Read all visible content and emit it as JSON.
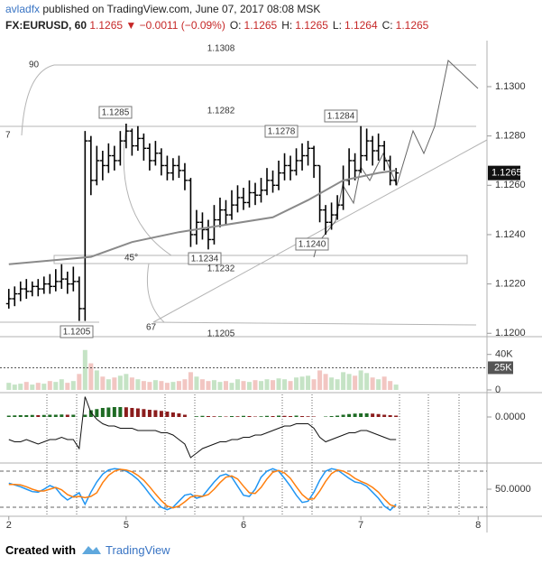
{
  "header": {
    "author": "avladfx",
    "published": "published on TradingView.com, June 07, 2017 08:08 MSK",
    "symbol": "FX:EURUSD, 60",
    "last": "1.1265",
    "arrow": "▼",
    "change": "−0.0011 (−0.09%)",
    "quote": [
      {
        "label": "O:",
        "value": "1.1265"
      },
      {
        "label": "H:",
        "value": "1.1265"
      },
      {
        "label": "L:",
        "value": "1.1264"
      },
      {
        "label": "C:",
        "value": "1.1265"
      }
    ]
  },
  "footer": {
    "created_with": "Created with",
    "brand": "TradingView"
  },
  "chart_data": [
    {
      "type": "ohlc",
      "color": "#000000",
      "xlim": [
        -1.5,
        81.5
      ],
      "ylim": [
        1.1199,
        1.1315
      ],
      "yticks": [
        {
          "value": 1.12,
          "label": "1.1200"
        },
        {
          "value": 1.122,
          "label": "1.1220"
        },
        {
          "value": 1.124,
          "label": "1.1240"
        },
        {
          "value": 1.126,
          "label": "1.1260"
        },
        {
          "value": 1.128,
          "label": "1.1280"
        },
        {
          "value": 1.13,
          "label": "1.1300"
        }
      ],
      "open": [
        1.1212,
        1.1214,
        1.1216,
        1.1218,
        1.1217,
        1.1219,
        1.1218,
        1.122,
        1.1219,
        1.1221,
        1.1222,
        1.122,
        1.1221,
        1.121,
        1.1278,
        1.1262,
        1.127,
        1.1268,
        1.1272,
        1.127,
        1.1278,
        1.1282,
        1.1276,
        1.1279,
        1.1275,
        1.127,
        1.1273,
        1.1268,
        1.1265,
        1.1268,
        1.1266,
        1.1262,
        1.124,
        1.1245,
        1.1242,
        1.1238,
        1.1246,
        1.125,
        1.1248,
        1.1252,
        1.1255,
        1.1253,
        1.1257,
        1.1256,
        1.1258,
        1.1262,
        1.126,
        1.1265,
        1.1268,
        1.1266,
        1.127,
        1.1272,
        1.1275,
        1.1268,
        1.125,
        1.1245,
        1.1248,
        1.1252,
        1.1262,
        1.127,
        1.1266,
        1.1272,
        1.1278,
        1.1274,
        1.1276,
        1.127,
        1.1262
      ],
      "high": [
        1.1218,
        1.1219,
        1.1221,
        1.1222,
        1.1221,
        1.1222,
        1.1223,
        1.1224,
        1.1226,
        1.1228,
        1.1225,
        1.1227,
        1.1223,
        1.1282,
        1.128,
        1.1276,
        1.1274,
        1.1277,
        1.1276,
        1.1282,
        1.1285,
        1.1283,
        1.1284,
        1.1281,
        1.1277,
        1.1278,
        1.1275,
        1.1272,
        1.1271,
        1.1272,
        1.1269,
        1.1263,
        1.125,
        1.1249,
        1.1246,
        1.1252,
        1.1255,
        1.1254,
        1.1258,
        1.126,
        1.1259,
        1.1262,
        1.1261,
        1.1263,
        1.1267,
        1.1266,
        1.127,
        1.1273,
        1.1272,
        1.1275,
        1.1277,
        1.1278,
        1.1276,
        1.1268,
        1.1252,
        1.1253,
        1.1256,
        1.1268,
        1.1275,
        1.1273,
        1.1284,
        1.1283,
        1.128,
        1.1281,
        1.1278,
        1.1272,
        1.1267
      ],
      "low": [
        1.121,
        1.1211,
        1.1213,
        1.1214,
        1.1215,
        1.1215,
        1.1216,
        1.1216,
        1.1217,
        1.1218,
        1.1216,
        1.1217,
        1.1205,
        1.1205,
        1.1256,
        1.126,
        1.1262,
        1.1265,
        1.1266,
        1.1268,
        1.1275,
        1.1272,
        1.1274,
        1.127,
        1.1266,
        1.1268,
        1.1264,
        1.1262,
        1.1262,
        1.1263,
        1.1258,
        1.1235,
        1.1236,
        1.1238,
        1.1234,
        1.1236,
        1.1243,
        1.1244,
        1.1246,
        1.1249,
        1.125,
        1.1251,
        1.1252,
        1.1253,
        1.1256,
        1.1257,
        1.1258,
        1.1262,
        1.1262,
        1.1264,
        1.1266,
        1.1268,
        1.1263,
        1.1245,
        1.124,
        1.1242,
        1.1246,
        1.125,
        1.126,
        1.1262,
        1.1265,
        1.127,
        1.1268,
        1.127,
        1.1266,
        1.126,
        1.126
      ],
      "close": [
        1.1214,
        1.1216,
        1.1218,
        1.1217,
        1.1219,
        1.1218,
        1.122,
        1.1219,
        1.1221,
        1.1222,
        1.122,
        1.1221,
        1.121,
        1.1278,
        1.1262,
        1.127,
        1.1268,
        1.1272,
        1.127,
        1.1278,
        1.1282,
        1.1276,
        1.1279,
        1.1275,
        1.127,
        1.1273,
        1.1268,
        1.1265,
        1.1268,
        1.1266,
        1.1262,
        1.124,
        1.1245,
        1.1242,
        1.1238,
        1.1246,
        1.125,
        1.1248,
        1.1252,
        1.1255,
        1.1253,
        1.1257,
        1.1256,
        1.1258,
        1.1262,
        1.126,
        1.1265,
        1.1268,
        1.1266,
        1.127,
        1.1272,
        1.1275,
        1.1268,
        1.125,
        1.1245,
        1.1248,
        1.1252,
        1.1262,
        1.127,
        1.1266,
        1.1272,
        1.1278,
        1.1274,
        1.1276,
        1.127,
        1.1262,
        1.1265
      ],
      "series": [
        {
          "color": "#8a8a8a",
          "x": [
            0,
            14,
            21,
            29,
            37,
            45,
            51,
            57,
            63,
            66
          ],
          "values": [
            1.1228,
            1.1231,
            1.1237,
            1.1241,
            1.1244,
            1.1247,
            1.1254,
            1.1262,
            1.1265,
            1.1266
          ]
        }
      ],
      "last_price": {
        "value": 1.1265,
        "label": "1.1265"
      },
      "annotations": [
        "1.1308",
        "1.1282",
        "1.1232",
        "1.1205",
        "1.1285",
        "1.1278",
        "1.1284",
        "1.1240",
        "1.1234",
        "1.1205",
        "90",
        "45°",
        "67",
        "7"
      ]
    },
    {
      "type": "bar",
      "up_color": "#c5e3c5",
      "down_color": "#f2c6c2",
      "xlim": [
        -1.5,
        81.5
      ],
      "ylim": [
        0,
        57000
      ],
      "yticks": [
        0,
        {
          "value": 40000,
          "label": "40K"
        }
      ],
      "ma_level": {
        "value": 25000,
        "label": "25K"
      },
      "values": [
        8000,
        6000,
        7000,
        9000,
        6000,
        8000,
        7000,
        10000,
        9000,
        12000,
        8000,
        10000,
        18000,
        45000,
        30000,
        22000,
        15000,
        12000,
        14000,
        16000,
        18000,
        14000,
        12000,
        10000,
        9000,
        11000,
        10000,
        8000,
        9000,
        10000,
        12000,
        20000,
        15000,
        12000,
        10000,
        11000,
        9000,
        10000,
        8000,
        12000,
        10000,
        9000,
        11000,
        10000,
        12000,
        11000,
        13000,
        12000,
        10000,
        14000,
        15000,
        16000,
        12000,
        22000,
        18000,
        14000,
        12000,
        20000,
        18000,
        16000,
        22000,
        19000,
        14000,
        12000,
        15000,
        10000,
        6000
      ]
    },
    {
      "type": "macd",
      "up_color": "#1e6b24",
      "down_color": "#8b1c1c",
      "xlim": [
        -1.5,
        81.5
      ],
      "ylim": [
        -0.002,
        0.001
      ],
      "yticks": [
        {
          "value": 0,
          "label": "0.0000"
        }
      ],
      "histogram": [
        6e-05,
        7e-05,
        8e-05,
        8e-05,
        9e-05,
        8e-05,
        9e-05,
        0.0001,
        0.0001,
        0.00011,
        0.0001,
        0.0001,
        0,
        0.0001,
        0.0003,
        0.00035,
        0.0004,
        0.00042,
        0.00044,
        0.00044,
        0.00043,
        0.0004,
        0.00038,
        0.00035,
        0.00032,
        0.0003,
        0.00027,
        0.00024,
        0.0002,
        0.00016,
        0.0001,
        0,
        3e-05,
        5e-05,
        4e-05,
        3e-05,
        3e-05,
        2e-05,
        4e-05,
        3e-05,
        5e-05,
        4e-05,
        2e-05,
        3e-05,
        5e-05,
        4e-05,
        6e-05,
        5e-05,
        4e-05,
        6e-05,
        4e-05,
        3e-05,
        2e-05,
        0,
        2e-05,
        4e-05,
        6e-05,
        0.0001,
        0.00013,
        0.00015,
        0.00016,
        0.00016,
        0.00015,
        0.00013,
        0.0001,
        8e-05,
        6e-05
      ],
      "series": [
        {
          "color": "#111111",
          "values": [
            -0.001,
            -0.0011,
            -0.0011,
            -0.001,
            -0.0011,
            -0.0012,
            -0.0011,
            -0.001,
            -0.001,
            -0.0009,
            -0.001,
            -0.001,
            -0.0014,
            0.0009,
            0.0002,
            -0.0001,
            -0.0003,
            -0.0004,
            -0.0004,
            -0.0005,
            -0.0005,
            -0.0005,
            -0.0006,
            -0.0006,
            -0.0006,
            -0.0006,
            -0.0007,
            -0.0007,
            -0.0008,
            -0.001,
            -0.0012,
            -0.0018,
            -0.0016,
            -0.0014,
            -0.0013,
            -0.0012,
            -0.0011,
            -0.0011,
            -0.001,
            -0.001,
            -0.0009,
            -0.0009,
            -0.0008,
            -0.0008,
            -0.0007,
            -0.0006,
            -0.0005,
            -0.0004,
            -0.0004,
            -0.0003,
            -0.0003,
            -0.0003,
            -0.0005,
            -0.0009,
            -0.0011,
            -0.001,
            -0.0009,
            -0.0008,
            -0.0007,
            -0.0007,
            -0.0006,
            -0.0006,
            -0.0007,
            -0.0008,
            -0.0009,
            -0.001,
            -0.001
          ]
        }
      ]
    },
    {
      "type": "stochastic",
      "xlim": [
        -1.5,
        81.5
      ],
      "ylim": [
        8,
        90.5
      ],
      "yticks": [
        {
          "value": 50,
          "label": "50.0000"
        }
      ],
      "bands": [
        20,
        80
      ],
      "series": [
        {
          "color": "#2196f3",
          "values": [
            60,
            57,
            54,
            50,
            46,
            45,
            50,
            56,
            52,
            40,
            32,
            38,
            44,
            25,
            45,
            62,
            75,
            82,
            84,
            83,
            80,
            74,
            66,
            55,
            42,
            30,
            20,
            16,
            20,
            30,
            40,
            42,
            35,
            38,
            50,
            62,
            72,
            75,
            70,
            55,
            40,
            38,
            50,
            70,
            80,
            84,
            80,
            68,
            55,
            40,
            28,
            30,
            45,
            65,
            80,
            84,
            82,
            75,
            68,
            62,
            60,
            55,
            45,
            35,
            22,
            15,
            25
          ]
        },
        {
          "color": "#ff7f0e",
          "values": [
            58,
            58,
            57,
            54,
            50,
            47,
            47,
            50,
            53,
            49,
            41,
            37,
            38,
            36,
            38,
            44,
            61,
            73,
            80,
            83,
            82,
            79,
            73,
            65,
            54,
            42,
            31,
            22,
            19,
            22,
            29,
            37,
            39,
            38,
            41,
            50,
            61,
            70,
            72,
            67,
            55,
            44,
            43,
            53,
            67,
            78,
            81,
            77,
            68,
            54,
            41,
            33,
            34,
            47,
            63,
            76,
            82,
            80,
            75,
            68,
            63,
            59,
            53,
            45,
            34,
            24,
            21
          ]
        }
      ],
      "xticks": [
        {
          "value": 0,
          "label": "2"
        },
        {
          "value": 20,
          "label": "5"
        },
        {
          "value": 40,
          "label": "6"
        },
        {
          "value": 60,
          "label": "7"
        },
        {
          "value": 80,
          "label": "8"
        }
      ]
    }
  ]
}
